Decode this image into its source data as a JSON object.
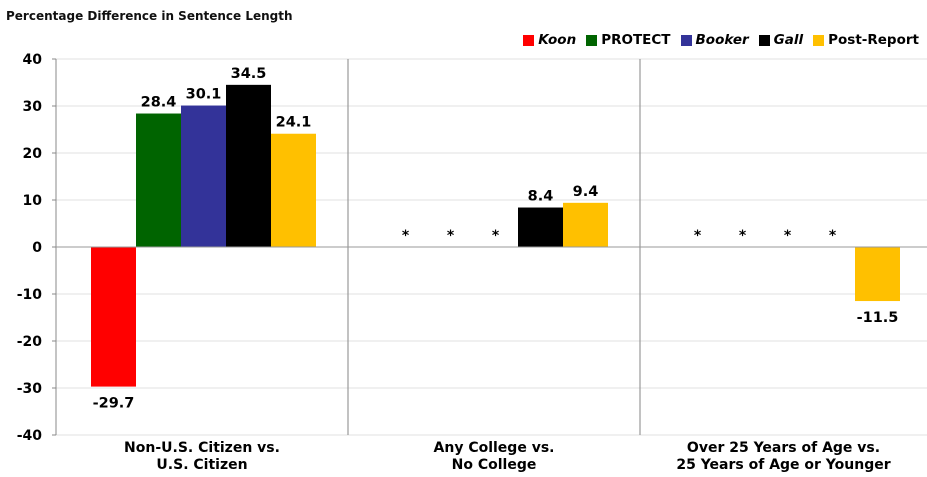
{
  "chart_data": {
    "type": "bar",
    "title": "Percentage Difference in Sentence Length",
    "ylim": [
      -40,
      40
    ],
    "yticks": [
      40,
      30,
      20,
      10,
      0,
      -10,
      -20,
      -30,
      -40
    ],
    "grid": true,
    "legend_position": "top-right",
    "categories": [
      "Non-U.S. Citizen vs.\nU.S. Citizen",
      "Any College vs.\nNo College",
      "Over 25 Years of Age vs.\n25 Years of Age or Younger"
    ],
    "series": [
      {
        "name": "Koon",
        "italic": true,
        "color": "#ff0000",
        "values": [
          -29.7,
          null,
          null
        ]
      },
      {
        "name": "PROTECT",
        "italic": false,
        "color": "#006400",
        "values": [
          28.4,
          null,
          null
        ]
      },
      {
        "name": "Booker",
        "italic": true,
        "color": "#333399",
        "values": [
          30.1,
          null,
          null
        ]
      },
      {
        "name": "Gall",
        "italic": true,
        "color": "#000000",
        "values": [
          34.5,
          8.4,
          null
        ]
      },
      {
        "name": "Post-Report",
        "italic": false,
        "color": "#ffc000",
        "values": [
          24.1,
          9.4,
          -11.5
        ]
      }
    ],
    "missing_marker": "*"
  }
}
